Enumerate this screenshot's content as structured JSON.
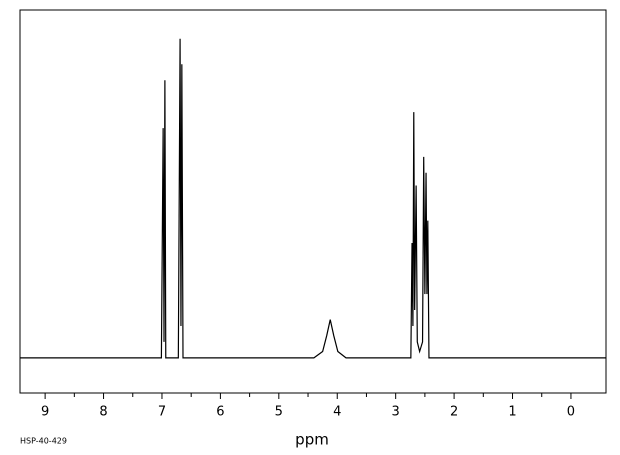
{
  "chart_data": {
    "type": "line",
    "x_label": "ppm",
    "footnote": "HSP-40-429",
    "x": [
      9.43,
      7.01,
      6.98,
      6.965,
      6.95,
      6.935,
      6.72,
      6.69,
      6.675,
      6.66,
      6.64,
      4.4,
      4.25,
      4.18,
      4.12,
      4.06,
      3.99,
      3.85,
      2.74,
      2.72,
      2.705,
      2.69,
      2.675,
      2.65,
      2.63,
      2.59,
      2.54,
      2.52,
      2.5,
      2.48,
      2.465,
      2.45,
      2.43,
      -0.6
    ],
    "series": [
      {
        "color": "#000000",
        "values": [
          0,
          0,
          0.72,
          0.05,
          0.87,
          0,
          0,
          1.0,
          0.1,
          0.92,
          0,
          0,
          0.02,
          0.07,
          0.12,
          0.07,
          0.02,
          0,
          0,
          0.36,
          0.1,
          0.77,
          0.15,
          0.54,
          0.05,
          0.02,
          0.05,
          0.63,
          0.2,
          0.58,
          0.2,
          0.43,
          0,
          0
        ]
      }
    ],
    "xlim": [
      9.43,
      -0.6
    ],
    "ylim": [
      -0.11,
      1.09
    ],
    "xticks": [
      9,
      8,
      7,
      6,
      5,
      4,
      3,
      2,
      1,
      0
    ]
  }
}
